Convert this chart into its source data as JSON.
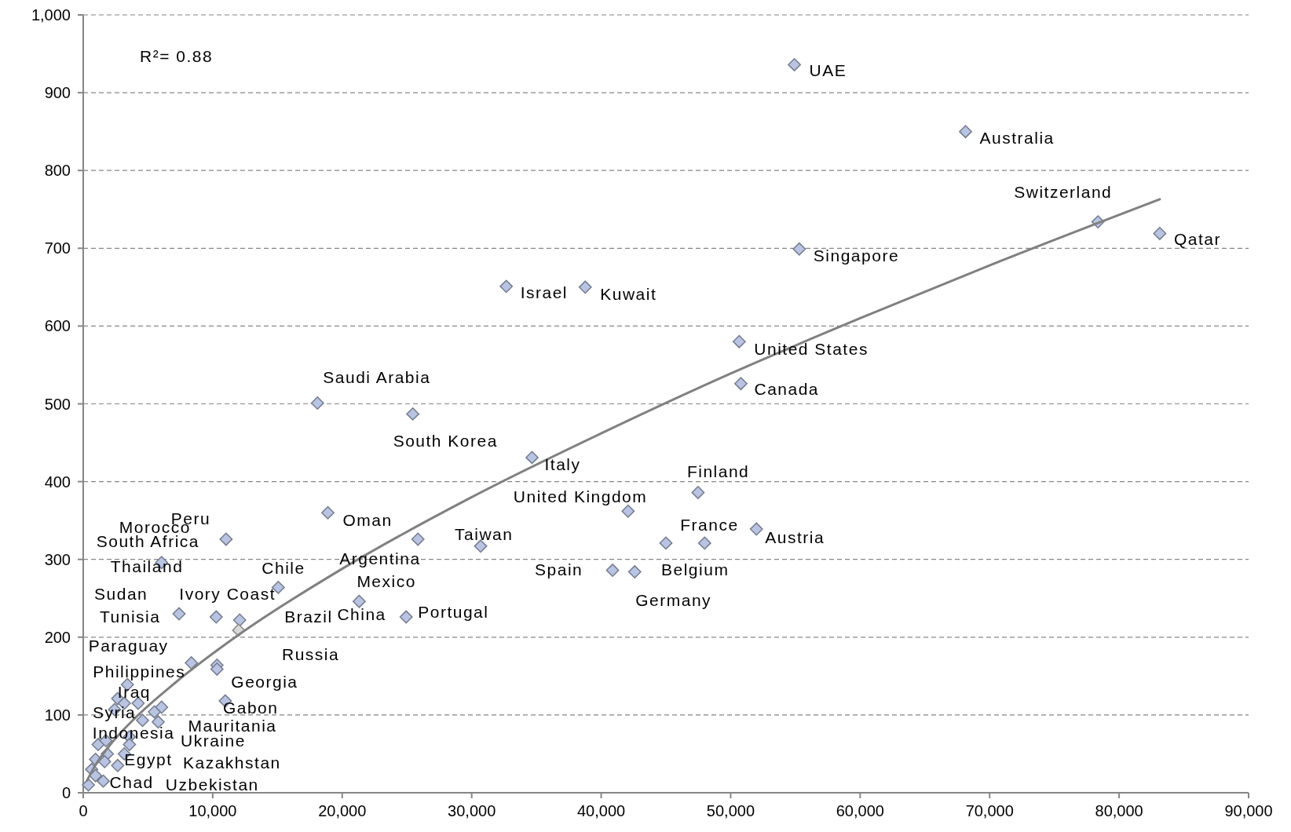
{
  "chart_data": {
    "type": "scatter",
    "xlim": [
      0,
      90000
    ],
    "xticks": [
      0,
      {
        "value": 10000,
        "label": "10,000"
      },
      {
        "value": 20000,
        "label": "20,000"
      },
      {
        "value": 30000,
        "label": "30,000"
      },
      {
        "value": 40000,
        "label": "40,000"
      },
      {
        "value": 50000,
        "label": "50,000"
      },
      {
        "value": 60000,
        "label": "60,000"
      },
      {
        "value": 70000,
        "label": "70,000"
      },
      {
        "value": 80000,
        "label": "80,000"
      },
      {
        "value": 90000,
        "label": "90,000"
      }
    ],
    "ylim": [
      0,
      1000
    ],
    "yticks": [
      0,
      100,
      200,
      300,
      400,
      500,
      600,
      700,
      800,
      900,
      {
        "value": 1000,
        "label": "1,000"
      }
    ],
    "grid": "y",
    "series": [
      {
        "marker": "diamond",
        "x": [
          54920,
          68140,
          78370,
          83140,
          55300,
          32670,
          38770,
          50660,
          50790,
          47480,
          42080,
          51990,
          47990,
          45000,
          40880,
          42590,
          18090,
          25450,
          34660,
          30690,
          11030,
          6050,
          18890,
          25850,
          15060,
          21310,
          24940,
          7400,
          10270,
          12080,
          12000,
          8350,
          10330,
          10330,
          10970,
          3410,
          2660,
          3170,
          4240,
          6050,
          5490,
          2420,
          4580,
          5790,
          3570,
          3570,
          1150,
          1750,
          1860,
          3170,
          950,
          1650,
          2660,
          650,
          950,
          1550,
          400
        ],
        "values": [
          936,
          850,
          734,
          719,
          699,
          651,
          650,
          580,
          526,
          386,
          362,
          339,
          321,
          321,
          286,
          284,
          501,
          487,
          431,
          317,
          326,
          296,
          360,
          326,
          264,
          246,
          226,
          230,
          226,
          222,
          209,
          167,
          164,
          159,
          118,
          139,
          121,
          115,
          115,
          110,
          104,
          107,
          93,
          91,
          72,
          62,
          62,
          67,
          50,
          50,
          43,
          40,
          35,
          30,
          22,
          15,
          10
        ],
        "colors": [
          "#b9c4e2",
          "#b9c4e2",
          "#b9c4e2",
          "#b9c4e2",
          "#b9c4e2",
          "#b9c4e2",
          "#b9c4e2",
          "#b9c4e2",
          "#b9c4e2",
          "#b9c4e2",
          "#b9c4e2",
          "#b9c4e2",
          "#b9c4e2",
          "#b9c4e2",
          "#b9c4e2",
          "#b9c4e2",
          "#b9c4e2",
          "#b9c4e2",
          "#b9c4e2",
          "#b9c4e2",
          "#b9c4e2",
          "#b9c4e2",
          "#b9c4e2",
          "#b9c4e2",
          "#b9c4e2",
          "#b9c4e2",
          "#b9c4e2",
          "#b9c4e2",
          "#b9c4e2",
          "#b9c4e2",
          "#d9d9d9",
          "#b9c4e2",
          "#b9c4e2",
          "#b9c4e2",
          "#b9c4e2",
          "#b9c4e2",
          "#b9c4e2",
          "#b9c4e2",
          "#b9c4e2",
          "#b9c4e2",
          "#b9c4e2",
          "#b9c4e2",
          "#b9c4e2",
          "#b9c4e2",
          "#b9c4e2",
          "#b9c4e2",
          "#b9c4e2",
          "#b9c4e2",
          "#b9c4e2",
          "#b9c4e2",
          "#b9c4e2",
          "#b9c4e2",
          "#b9c4e2",
          "#b9c4e2",
          "#b9c4e2",
          "#b9c4e2",
          "#b9c4e2"
        ]
      },
      {
        "type": "line",
        "marker": "none",
        "line_style": "solid",
        "color": "#808080",
        "x": [
          300,
          1000,
          2000,
          4000,
          7000,
          12000,
          20000,
          30000,
          40000,
          50000,
          60000,
          70000,
          83140
        ],
        "values": [
          16,
          37,
          60,
          96,
          140,
          203,
          288,
          380,
          462,
          539,
          610,
          678,
          763
        ]
      }
    ],
    "annotations": [
      "R²= 0.88",
      {
        "text": "UAE",
        "x": 54920,
        "y": 936
      },
      {
        "text": "Australia",
        "x": 68140,
        "y": 850
      },
      {
        "text": "Switzerland",
        "x": 78370,
        "y": 734
      },
      {
        "text": "Qatar",
        "x": 83140,
        "y": 719
      },
      {
        "text": "Singapore",
        "x": 55300,
        "y": 699
      },
      {
        "text": "Israel",
        "x": 32670,
        "y": 651
      },
      {
        "text": "Kuwait",
        "x": 38770,
        "y": 650
      },
      {
        "text": "United States",
        "x": 50660,
        "y": 580
      },
      {
        "text": "Canada",
        "x": 50790,
        "y": 526
      },
      {
        "text": "Saudi Arabia",
        "x": 18090,
        "y": 501
      },
      {
        "text": "South Korea",
        "x": 25450,
        "y": 487
      },
      {
        "text": "Italy",
        "x": 34660,
        "y": 431
      },
      {
        "text": "Finland",
        "x": 47480,
        "y": 386
      },
      {
        "text": "United Kingdom",
        "x": 42080,
        "y": 362
      },
      {
        "text": "Oman",
        "x": 18890,
        "y": 360
      },
      {
        "text": "France",
        "x": 47990,
        "y": 321
      },
      {
        "text": "Austria",
        "x": 51990,
        "y": 339
      },
      {
        "text": "Peru",
        "x": 11030,
        "y": 326
      },
      {
        "text": "Morocco",
        "x": 11030,
        "y": 326
      },
      {
        "text": "South Africa",
        "x": 6050,
        "y": 296
      },
      {
        "text": "Taiwan",
        "x": 30690,
        "y": 317
      },
      {
        "text": "Argentina",
        "x": 25850,
        "y": 326
      },
      {
        "text": "Chile",
        "x": 15060,
        "y": 264
      },
      {
        "text": "Thailand",
        "x": 6050,
        "y": 296
      },
      {
        "text": "Spain",
        "x": 40880,
        "y": 286
      },
      {
        "text": "Belgium",
        "x": 45000,
        "y": 321
      },
      {
        "text": "Mexico",
        "x": 21310,
        "y": 246
      },
      {
        "text": "Ivory Coast",
        "x": 10270,
        "y": 226
      },
      {
        "text": "Sudan",
        "x": 7400,
        "y": 230
      },
      {
        "text": "Germany",
        "x": 42590,
        "y": 284
      },
      {
        "text": "Tunisia",
        "x": 7400,
        "y": 230
      },
      {
        "text": "Brazil",
        "x": 12080,
        "y": 222
      },
      {
        "text": "China",
        "x": 21310,
        "y": 246
      },
      {
        "text": "Portugal",
        "x": 24940,
        "y": 226
      },
      {
        "text": "Paraguay",
        "x": 8350,
        "y": 167
      },
      "Russia",
      {
        "text": "Philippines",
        "x": 3410,
        "y": 139
      },
      {
        "text": "Georgia",
        "x": 10330,
        "y": 159
      },
      {
        "text": "Iraq",
        "x": 2660,
        "y": 121
      },
      {
        "text": "Gabon",
        "x": 10970,
        "y": 118
      },
      {
        "text": "Syria",
        "x": 2420,
        "y": 107
      },
      {
        "text": "Mauritania",
        "x": 5790,
        "y": 91
      },
      {
        "text": "Indonesia",
        "x": 3570,
        "y": 72
      },
      "Ukraine",
      {
        "text": "Egypt",
        "x": 3170,
        "y": 50
      },
      "Kazakhstan",
      {
        "text": "Chad",
        "x": 1550,
        "y": 15
      },
      {
        "text": "Uzbekistan",
        "x": 2660,
        "y": 35
      }
    ]
  }
}
